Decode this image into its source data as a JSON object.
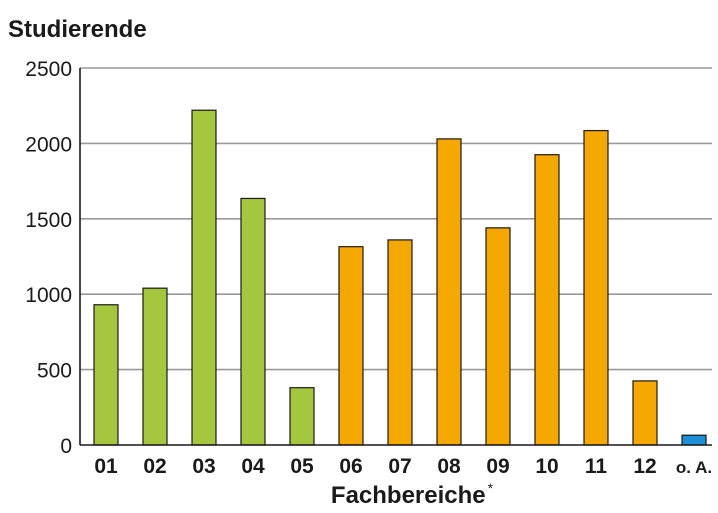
{
  "chart_data": {
    "type": "bar",
    "ylabel": "Studierende",
    "xlabel": "Fachbereiche",
    "xlabel_sup": "*",
    "ylim": [
      0,
      2500
    ],
    "yticks": [
      0,
      500,
      1000,
      1500,
      2000,
      2500
    ],
    "grid": true,
    "categories": [
      "01",
      "02",
      "03",
      "04",
      "05",
      "06",
      "07",
      "08",
      "09",
      "10",
      "11",
      "12",
      "o. A."
    ],
    "values": [
      930,
      1040,
      2220,
      1635,
      380,
      1315,
      1360,
      2030,
      1440,
      1925,
      2085,
      425,
      65
    ],
    "colors": [
      "#a5c63f",
      "#a5c63f",
      "#a5c63f",
      "#a5c63f",
      "#a5c63f",
      "#f5a800",
      "#f5a800",
      "#f5a800",
      "#f5a800",
      "#f5a800",
      "#f5a800",
      "#f5a800",
      "#1c8fd6"
    ]
  }
}
